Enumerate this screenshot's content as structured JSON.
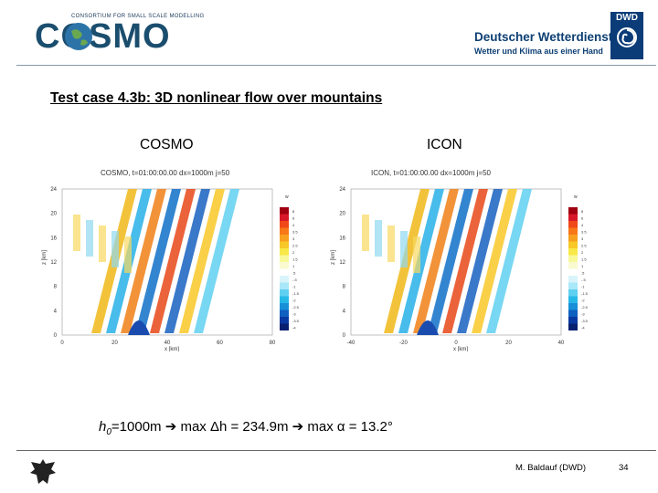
{
  "header": {
    "cosmo_logo_text": "COSMO",
    "cosmo_logo_subtitle": "CONSORTIUM FOR SMALL SCALE MODELLING",
    "dwd_name": "Deutscher Wetterdienst",
    "dwd_slogan": "Wetter und Klima aus einer Hand",
    "dwd_badge": "DWD"
  },
  "slide": {
    "title": "Test case 4.3b: 3D nonlinear flow over mountains",
    "label_left": "COSMO",
    "label_right": "ICON"
  },
  "plots": [
    {
      "title": "COSMO, t=01:00:00.00 dx=1000m j=50",
      "x_ticks": [
        "0",
        "20",
        "40",
        "60",
        "80"
      ],
      "y_ticks": [
        "0",
        "4",
        "8",
        "12",
        "16",
        "20",
        "24"
      ],
      "ylabel": "z [km]",
      "xlabel": "x [km]"
    },
    {
      "title": "ICON, t=01:00:00.00 dx=1000m j=50",
      "x_ticks": [
        "-40",
        "-20",
        "0",
        "20",
        "40"
      ],
      "y_ticks": [
        "0",
        "4",
        "8",
        "12",
        "16",
        "20",
        "24"
      ],
      "ylabel": "z [km]",
      "xlabel": "x [km]"
    }
  ],
  "colorbar": {
    "unit": "w",
    "labels": [
      "8",
      "6",
      "4",
      "3.5",
      "3",
      "2.5",
      "2",
      "1.5",
      "1",
      ".5",
      "-.5",
      "-1",
      "-1.5",
      "-2",
      "-2.5",
      "-3",
      "-3.5",
      "-4"
    ],
    "colors": [
      "#a00010",
      "#d81828",
      "#f04818",
      "#f87818",
      "#f8a020",
      "#f8c828",
      "#f8e848",
      "#f8f898",
      "#fafad0",
      "#ffffff",
      "#d8f4fa",
      "#a8e8f8",
      "#60d0f0",
      "#28b8e8",
      "#1890d8",
      "#1060c0",
      "#0838a0",
      "#082070"
    ]
  },
  "footer": {
    "formula_h": "h",
    "formula_sub": "0",
    "formula_a": "=1000m",
    "formula_b": " max ",
    "formula_c": "h = 234.9m",
    "formula_d": " max ",
    "formula_e": " = 13.2°",
    "author": "M. Baldauf (DWD)",
    "page": "34"
  }
}
